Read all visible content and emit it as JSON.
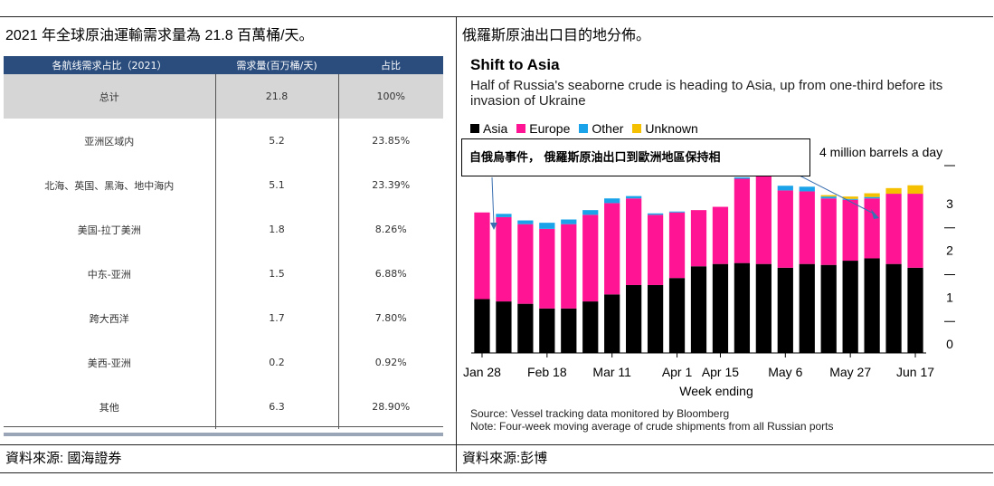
{
  "left": {
    "heading": "2021 年全球原油運輸需求量為 21.8 百萬桶/天。",
    "table": {
      "headers": [
        "各航线需求占比（2021）",
        "需求量(百万桶/天)",
        "占比"
      ],
      "rows": [
        {
          "route": "总计",
          "volume": "21.8",
          "share": "100%"
        },
        {
          "route": "亚洲区域内",
          "volume": "5.2",
          "share": "23.85%"
        },
        {
          "route": "北海、英国、黑海、地中海内",
          "volume": "5.1",
          "share": "23.39%"
        },
        {
          "route": "美国-拉丁美洲",
          "volume": "1.8",
          "share": "8.26%"
        },
        {
          "route": "中东-亚洲",
          "volume": "1.5",
          "share": "6.88%"
        },
        {
          "route": "跨大西洋",
          "volume": "1.7",
          "share": "7.80%"
        },
        {
          "route": "美西-亚洲",
          "volume": "0.2",
          "share": "0.92%"
        },
        {
          "route": "其他",
          "volume": "6.3",
          "share": "28.90%"
        }
      ]
    },
    "source": "資料來源: 國海證券"
  },
  "right": {
    "heading": "俄羅斯原油出口目的地分佈。",
    "source": "資料來源:彭博",
    "callout": "自俄烏事件， 俄羅斯原油出口到歐洲地區保持相",
    "footnote_source": "Source: Vessel tracking data monitored by Bloomberg",
    "footnote_note": "Note: Four-week moving average of crude shipments from all Russian ports",
    "colors": {
      "Asia": "#000000",
      "Europe": "#ff1493",
      "Other": "#1aa3e8",
      "Unknown": "#f5c000"
    }
  },
  "chart_data": {
    "type": "bar",
    "stacked": true,
    "title": "Shift to Asia",
    "subtitle": "Half of Russia's seaborne crude is heading to Asia, up from one-third before its invasion of Ukraine",
    "xlabel": "Week ending",
    "unit_label": "4 million barrels a day",
    "ylim": [
      0,
      4
    ],
    "yticks": [
      "0",
      "1",
      "2",
      "3"
    ],
    "xtick_labels": [
      {
        "label": "Jan 28",
        "index": 0
      },
      {
        "label": "Feb 18",
        "index": 3
      },
      {
        "label": "Mar 11",
        "index": 6
      },
      {
        "label": "Apr 1",
        "index": 9
      },
      {
        "label": "Apr 15",
        "index": 11
      },
      {
        "label": "May 6",
        "index": 14
      },
      {
        "label": "May 27",
        "index": 17
      },
      {
        "label": "Jun 17",
        "index": 20
      }
    ],
    "legend": [
      "Asia",
      "Europe",
      "Other",
      "Unknown"
    ],
    "series": [
      {
        "name": "Asia",
        "values": [
          1.15,
          1.1,
          1.05,
          0.95,
          0.95,
          1.1,
          1.25,
          1.45,
          1.45,
          1.6,
          1.85,
          1.9,
          1.92,
          1.9,
          1.82,
          1.9,
          1.88,
          1.97,
          2.02,
          1.9,
          1.82
        ]
      },
      {
        "name": "Europe",
        "values": [
          1.85,
          1.8,
          1.7,
          1.7,
          1.8,
          1.85,
          1.95,
          1.85,
          1.5,
          1.4,
          1.2,
          1.22,
          1.8,
          1.95,
          1.65,
          1.55,
          1.42,
          1.3,
          1.28,
          1.5,
          1.58
        ]
      },
      {
        "name": "Other",
        "values": [
          0.0,
          0.07,
          0.08,
          0.13,
          0.1,
          0.1,
          0.1,
          0.05,
          0.03,
          0.02,
          0.0,
          0.0,
          0.03,
          0.05,
          0.1,
          0.1,
          0.04,
          0.02,
          0.03,
          0.0,
          0.0
        ]
      },
      {
        "name": "Unknown",
        "values": [
          0.0,
          0.0,
          0.0,
          0.0,
          0.0,
          0.0,
          0.0,
          0.0,
          0.0,
          0.0,
          0.0,
          0.0,
          0.0,
          0.0,
          0.0,
          0.0,
          0.03,
          0.05,
          0.08,
          0.12,
          0.18
        ]
      }
    ]
  }
}
